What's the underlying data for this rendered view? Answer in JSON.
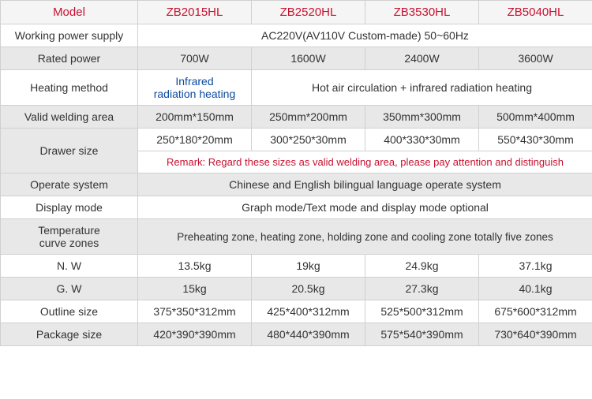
{
  "header": {
    "model": "Model",
    "col1": "ZB2015HL",
    "col2": "ZB2520HL",
    "col3": "ZB3530HL",
    "col4": "ZB5040HL"
  },
  "rows": {
    "power_supply": {
      "label": "Working power supply",
      "value": "AC220V(AV110V  Custom-made)   50~60Hz"
    },
    "rated_power": {
      "label": "Rated power",
      "v1": "700W",
      "v2": "1600W",
      "v3": "2400W",
      "v4": "3600W"
    },
    "heating_method": {
      "label": "Heating method",
      "v1_line1": "Infrared",
      "v1_line2": "radiation heating",
      "rest": "Hot air circulation + infrared radiation heating"
    },
    "valid_welding": {
      "label": "Valid welding area",
      "v1": "200mm*150mm",
      "v2": "250mm*200mm",
      "v3": "350mm*300mm",
      "v4": "500mm*400mm"
    },
    "drawer_size": {
      "label": "Drawer size",
      "v1": "250*180*20mm",
      "v2": "300*250*30mm",
      "v3": "400*330*30mm",
      "v4": "550*430*30mm",
      "remark": "Remark: Regard these sizes as valid welding area, please pay attention and distinguish"
    },
    "operate_system": {
      "label": "Operate system",
      "value": "Chinese and English bilingual language operate system"
    },
    "display_mode": {
      "label": "Display mode",
      "value": "Graph mode/Text mode and display mode optional"
    },
    "temp_curve": {
      "label_line1": "Temperature",
      "label_line2": "curve zones",
      "value": "Preheating zone, heating zone, holding zone and cooling zone totally five zones"
    },
    "nw": {
      "label": "N. W",
      "v1": "13.5kg",
      "v2": "19kg",
      "v3": "24.9kg",
      "v4": "37.1kg"
    },
    "gw": {
      "label": "G. W",
      "v1": "15kg",
      "v2": "20.5kg",
      "v3": "27.3kg",
      "v4": "40.1kg"
    },
    "outline": {
      "label": "Outline size",
      "v1": "375*350*312mm",
      "v2": "425*400*312mm",
      "v3": "525*500*312mm",
      "v4": "675*600*312mm"
    },
    "package": {
      "label": "Package size",
      "v1": "420*390*390mm",
      "v2": "480*440*390mm",
      "v3": "575*540*390mm",
      "v4": "730*640*390mm"
    }
  },
  "colors": {
    "header_text": "#c8102e",
    "blue_text": "#0a4a9e",
    "grey_bg": "#e8e8e8",
    "white_bg": "#ffffff",
    "border": "#d0d0d0"
  }
}
